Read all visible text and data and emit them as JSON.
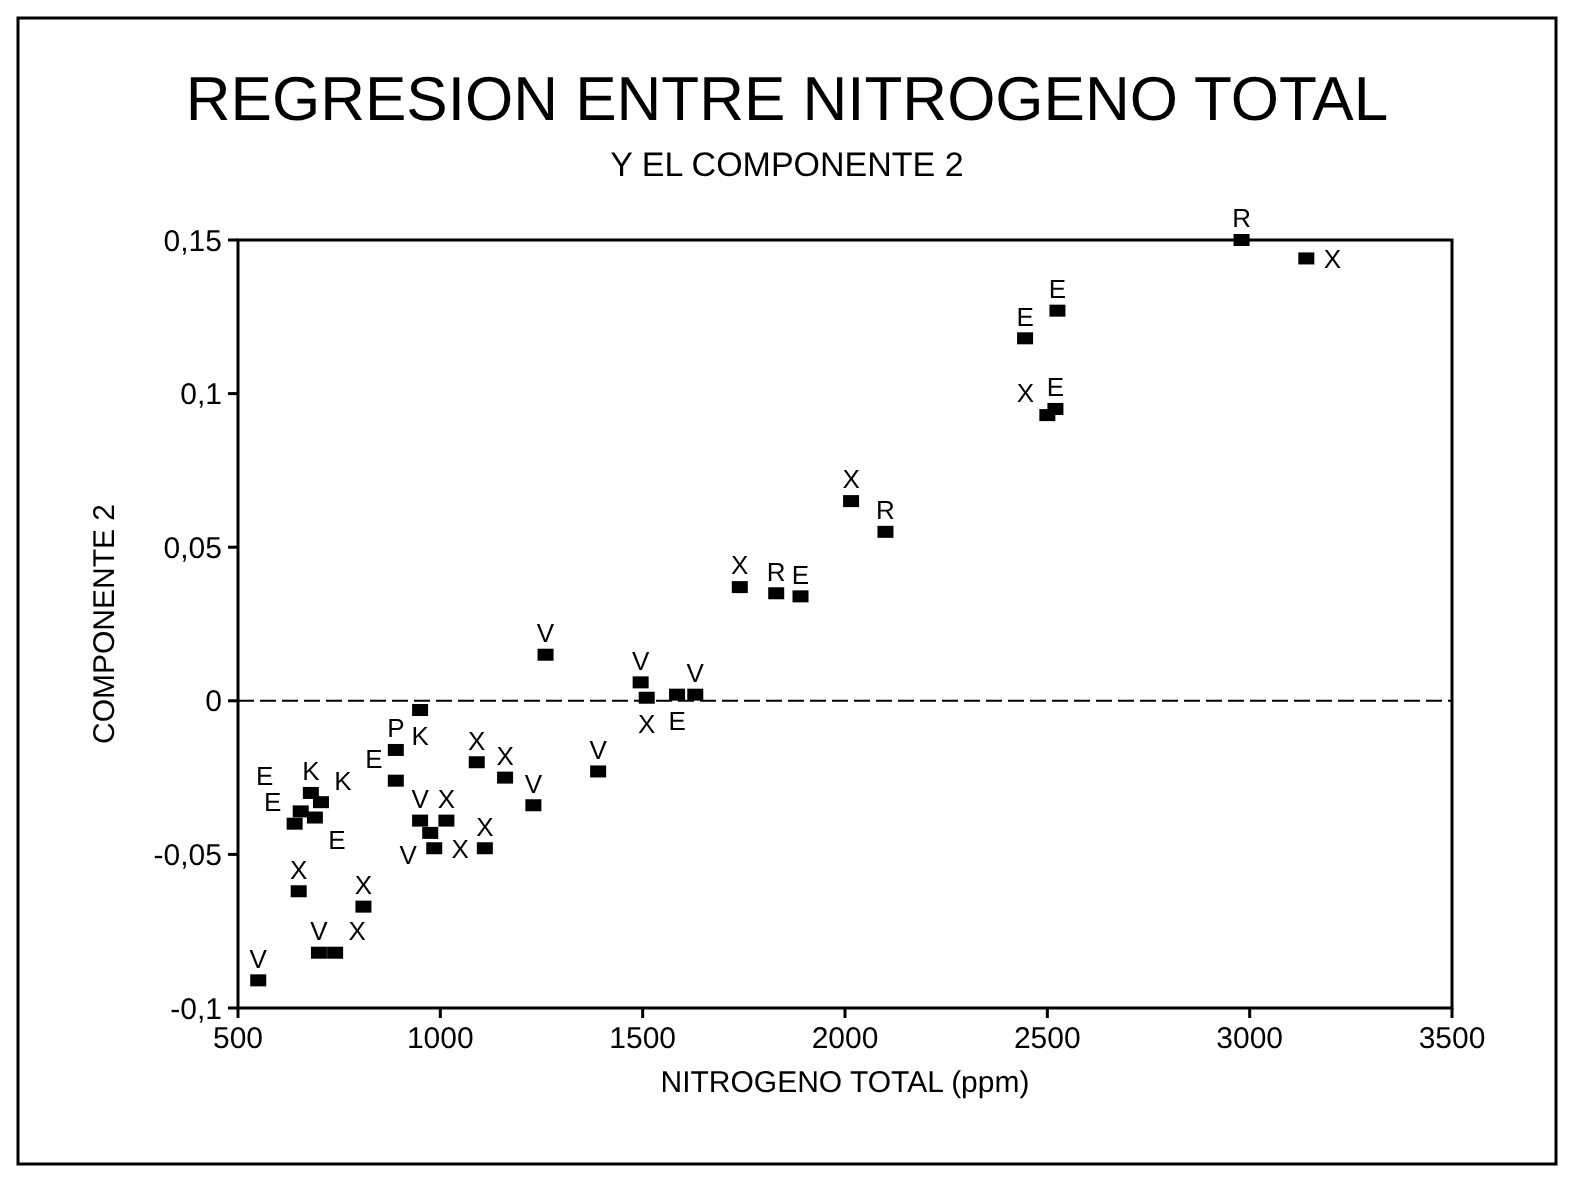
{
  "chart_data": {
    "type": "scatter",
    "title": "REGRESION ENTRE NITROGENO TOTAL",
    "subtitle": "Y EL COMPONENTE 2",
    "xlabel": "NITROGENO TOTAL (ppm)",
    "ylabel": "COMPONENTE 2",
    "xlim": [
      500,
      3500
    ],
    "xticks": [
      500,
      1000,
      1500,
      2000,
      2500,
      3000,
      3500
    ],
    "ylim": [
      -0.1,
      0.15
    ],
    "yticks": [
      {
        "value": -0.1,
        "label": "-0,1"
      },
      {
        "value": -0.05,
        "label": "-0,05"
      },
      {
        "value": 0,
        "label": "0"
      },
      {
        "value": 0.05,
        "label": "0,05"
      },
      {
        "value": 0.1,
        "label": "0,1"
      },
      {
        "value": 0.15,
        "label": "0,15"
      }
    ],
    "marker": "square",
    "grid": false,
    "ref_lines": [
      {
        "axis": "y",
        "value": 0,
        "color": "#000000",
        "line_style": "dashed"
      }
    ],
    "series": [
      {
        "name": "V",
        "color": "#000000",
        "x": [
          550,
          700,
          950,
          975,
          1230,
          1260,
          1390,
          1495,
          1630
        ],
        "values": [
          -0.091,
          -0.082,
          -0.039,
          -0.043,
          -0.034,
          0.015,
          -0.023,
          0.006,
          0.002
        ]
      },
      {
        "name": "X",
        "color": "#000000",
        "x": [
          650,
          740,
          810,
          1015,
          985,
          1090,
          1110,
          1160,
          1510,
          1740,
          2015,
          2500,
          3140
        ],
        "values": [
          -0.062,
          -0.082,
          -0.067,
          -0.039,
          -0.048,
          -0.02,
          -0.048,
          -0.025,
          0.001,
          0.037,
          0.065,
          0.093,
          0.144
        ]
      },
      {
        "name": "K",
        "color": "#000000",
        "x": [
          680,
          705,
          950
        ],
        "values": [
          -0.03,
          -0.033,
          -0.003
        ]
      },
      {
        "name": "E",
        "color": "#000000",
        "x": [
          640,
          655,
          690,
          890,
          1585,
          1890,
          2445,
          2525,
          2520
        ],
        "values": [
          -0.04,
          -0.036,
          -0.038,
          -0.026,
          0.002,
          0.034,
          0.118,
          0.127,
          0.095
        ]
      },
      {
        "name": "R",
        "color": "#000000",
        "x": [
          1830,
          2100,
          2980
        ],
        "values": [
          0.035,
          0.055,
          0.15
        ]
      },
      {
        "name": "P",
        "color": "#000000",
        "x": [
          890
        ],
        "values": [
          -0.016
        ]
      }
    ]
  }
}
